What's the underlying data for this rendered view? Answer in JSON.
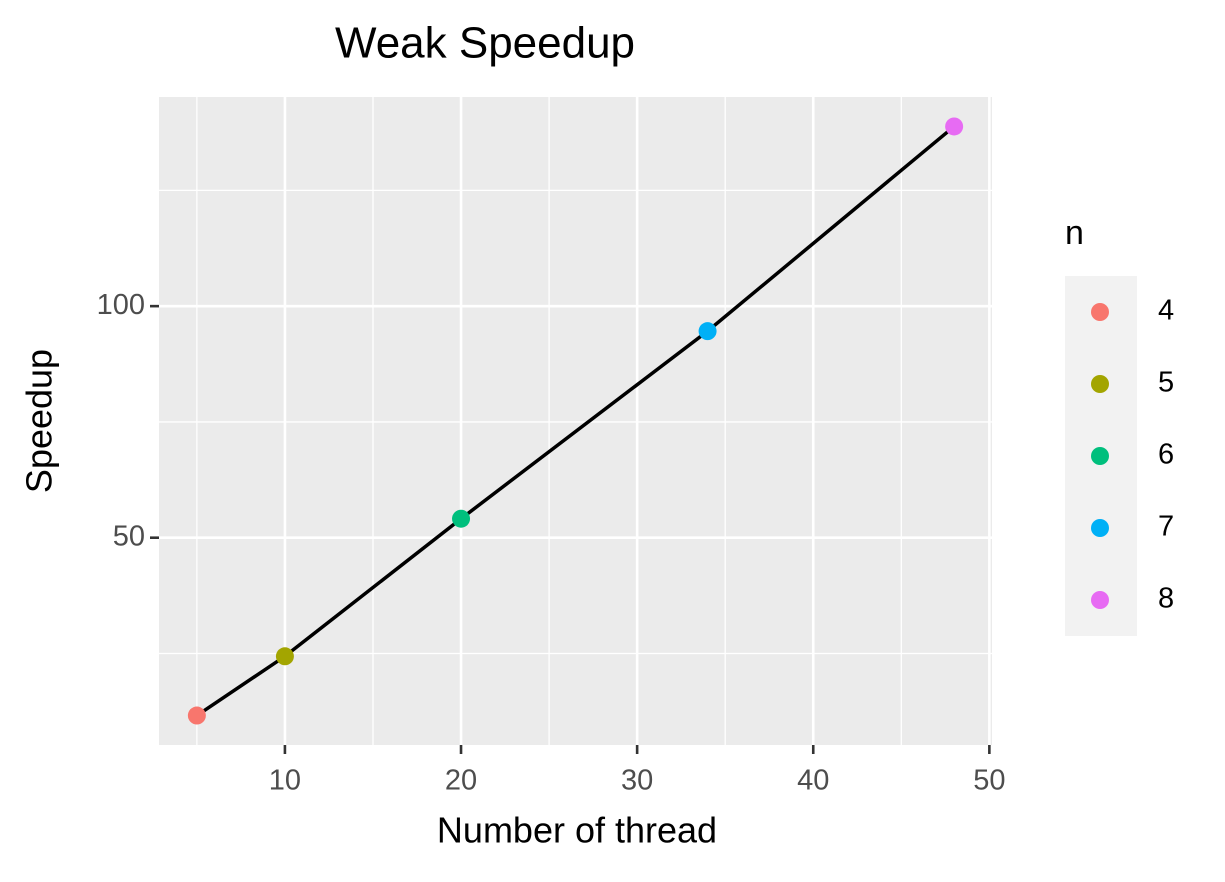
{
  "chart_data": {
    "type": "scatter-line",
    "title": "Weak Speedup",
    "x_label": "Number of thread",
    "y_label": "Speedup",
    "x": [
      5,
      10,
      20,
      34,
      48
    ],
    "values": [
      11.6,
      24.4,
      54.1,
      94.6,
      138.8
    ],
    "n": [
      "4",
      "5",
      "6",
      "7",
      "8"
    ],
    "colors": [
      "#f8766d",
      "#a3a500",
      "#00bf7d",
      "#00b0f6",
      "#e76bf3"
    ],
    "line_color": "#000000",
    "legend_title": "n",
    "legend": "right",
    "xlim": [
      2.85,
      50.15
    ],
    "ylim": [
      5.24,
      145.16
    ],
    "xticks": [
      10,
      20,
      30,
      40,
      50
    ],
    "yticks": [
      50,
      100
    ],
    "minor_xticks": [
      5,
      15,
      25,
      35,
      45
    ],
    "minor_yticks": [
      25,
      75,
      125
    ],
    "grid": true
  }
}
